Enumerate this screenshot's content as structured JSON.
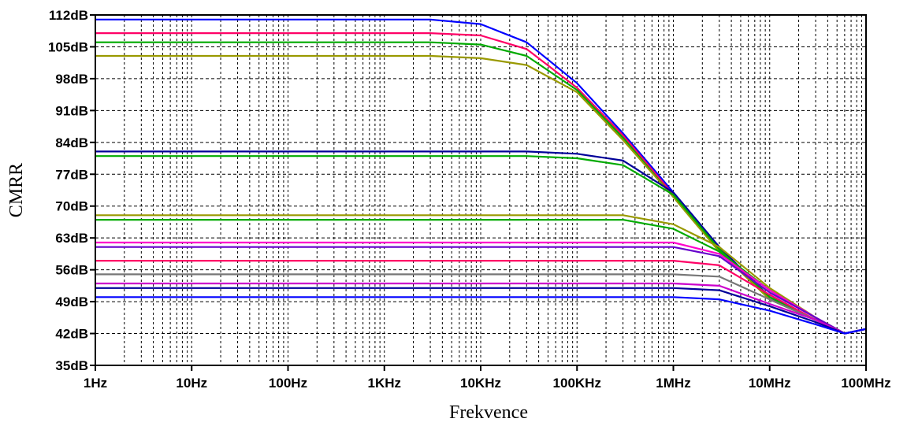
{
  "chart_data": {
    "type": "line",
    "title": "",
    "xlabel": "Frekvence",
    "ylabel": "CMRR",
    "x_scale": "log",
    "xlim": [
      1,
      100000000
    ],
    "ylim": [
      35,
      112
    ],
    "grid": true,
    "legend": "none",
    "x_ticks": [
      {
        "value": 1,
        "label": "1Hz"
      },
      {
        "value": 10,
        "label": "10Hz"
      },
      {
        "value": 100,
        "label": "100Hz"
      },
      {
        "value": 1000,
        "label": "1KHz"
      },
      {
        "value": 10000,
        "label": "10KHz"
      },
      {
        "value": 100000,
        "label": "100KHz"
      },
      {
        "value": 1000000,
        "label": "1MHz"
      },
      {
        "value": 10000000,
        "label": "10MHz"
      },
      {
        "value": 100000000,
        "label": "100MHz"
      }
    ],
    "y_ticks": [
      {
        "value": 35,
        "label": "35dB"
      },
      {
        "value": 42,
        "label": "42dB"
      },
      {
        "value": 49,
        "label": "49dB"
      },
      {
        "value": 56,
        "label": "56dB"
      },
      {
        "value": 63,
        "label": "63dB"
      },
      {
        "value": 70,
        "label": "70dB"
      },
      {
        "value": 77,
        "label": "77dB"
      },
      {
        "value": 84,
        "label": "84dB"
      },
      {
        "value": 91,
        "label": "91dB"
      },
      {
        "value": 98,
        "label": "98dB"
      },
      {
        "value": 105,
        "label": "105dB"
      },
      {
        "value": 112,
        "label": "112dB"
      }
    ],
    "series": [
      {
        "color": "#0000ff",
        "x": [
          1,
          3000,
          10000,
          30000,
          100000,
          300000,
          1000000,
          3000000,
          10000000,
          30000000,
          60000000,
          100000000
        ],
        "y": [
          111,
          111,
          110,
          106,
          97,
          86,
          73,
          61,
          50,
          45,
          42,
          43
        ]
      },
      {
        "color": "#ff0066",
        "x": [
          1,
          3000,
          10000,
          30000,
          100000,
          300000,
          1000000,
          3000000,
          10000000,
          30000000,
          60000000,
          100000000
        ],
        "y": [
          108,
          108,
          107.5,
          104.5,
          96,
          85.5,
          72.5,
          60.5,
          50,
          45,
          42,
          43
        ]
      },
      {
        "color": "#00aa00",
        "x": [
          1,
          3000,
          10000,
          30000,
          100000,
          300000,
          1000000,
          3000000,
          10000000,
          30000000,
          60000000,
          100000000
        ],
        "y": [
          106,
          106,
          105.5,
          103,
          95.5,
          85,
          72,
          60,
          49.5,
          45,
          42,
          43
        ]
      },
      {
        "color": "#999900",
        "x": [
          1,
          3000,
          10000,
          30000,
          100000,
          300000,
          1000000,
          3000000,
          10000000,
          30000000,
          60000000,
          100000000
        ],
        "y": [
          103,
          103,
          102.5,
          101,
          95,
          84.5,
          72,
          60,
          49.5,
          45,
          42,
          43
        ]
      },
      {
        "color": "#000099",
        "x": [
          1,
          30000,
          100000,
          300000,
          1000000,
          3000000,
          10000000,
          30000000,
          60000000,
          100000000
        ],
        "y": [
          82,
          82,
          81.5,
          80,
          73,
          61,
          50,
          45,
          42,
          43
        ]
      },
      {
        "color": "#00aa00",
        "x": [
          1,
          30000,
          100000,
          300000,
          1000000,
          3000000,
          10000000,
          30000000,
          60000000,
          100000000
        ],
        "y": [
          81,
          81,
          80.5,
          79,
          72.5,
          60.5,
          50,
          45,
          42,
          43
        ]
      },
      {
        "color": "#999900",
        "x": [
          1,
          300000,
          1000000,
          3000000,
          10000000,
          30000000,
          60000000,
          100000000
        ],
        "y": [
          68,
          68,
          66,
          61,
          52,
          45.5,
          42,
          43
        ]
      },
      {
        "color": "#00aa00",
        "x": [
          1,
          300000,
          1000000,
          3000000,
          10000000,
          30000000,
          60000000,
          100000000
        ],
        "y": [
          67,
          67,
          65,
          60,
          51.5,
          45.5,
          42,
          43
        ]
      },
      {
        "color": "#ff00cc",
        "x": [
          1,
          1000000,
          3000000,
          10000000,
          30000000,
          60000000,
          100000000
        ],
        "y": [
          62,
          62,
          59.5,
          51.5,
          45.5,
          42,
          43
        ]
      },
      {
        "color": "#6600cc",
        "x": [
          1,
          1000000,
          3000000,
          10000000,
          30000000,
          60000000,
          100000000
        ],
        "y": [
          61,
          61,
          59,
          51,
          45.5,
          42,
          43
        ]
      },
      {
        "color": "#ff0066",
        "x": [
          1,
          1000000,
          3000000,
          10000000,
          30000000,
          60000000,
          100000000
        ],
        "y": [
          58,
          58,
          57,
          50.5,
          45,
          42,
          43
        ]
      },
      {
        "color": "#777777",
        "x": [
          1,
          1000000,
          3000000,
          10000000,
          30000000,
          60000000,
          100000000
        ],
        "y": [
          55,
          55,
          54.5,
          49.5,
          45,
          42,
          43
        ]
      },
      {
        "color": "#cc00cc",
        "x": [
          1,
          1000000,
          3000000,
          10000000,
          30000000,
          60000000,
          100000000
        ],
        "y": [
          53,
          53,
          52.5,
          48.5,
          45,
          42,
          43
        ]
      },
      {
        "color": "#000099",
        "x": [
          1,
          1000000,
          3000000,
          10000000,
          30000000,
          60000000,
          100000000
        ],
        "y": [
          52,
          52,
          51.5,
          48,
          44.5,
          42,
          43
        ]
      },
      {
        "color": "#0000ff",
        "x": [
          1,
          1000000,
          3000000,
          10000000,
          30000000,
          60000000,
          100000000
        ],
        "y": [
          50,
          50,
          49.5,
          47,
          44,
          42,
          43
        ]
      }
    ]
  }
}
